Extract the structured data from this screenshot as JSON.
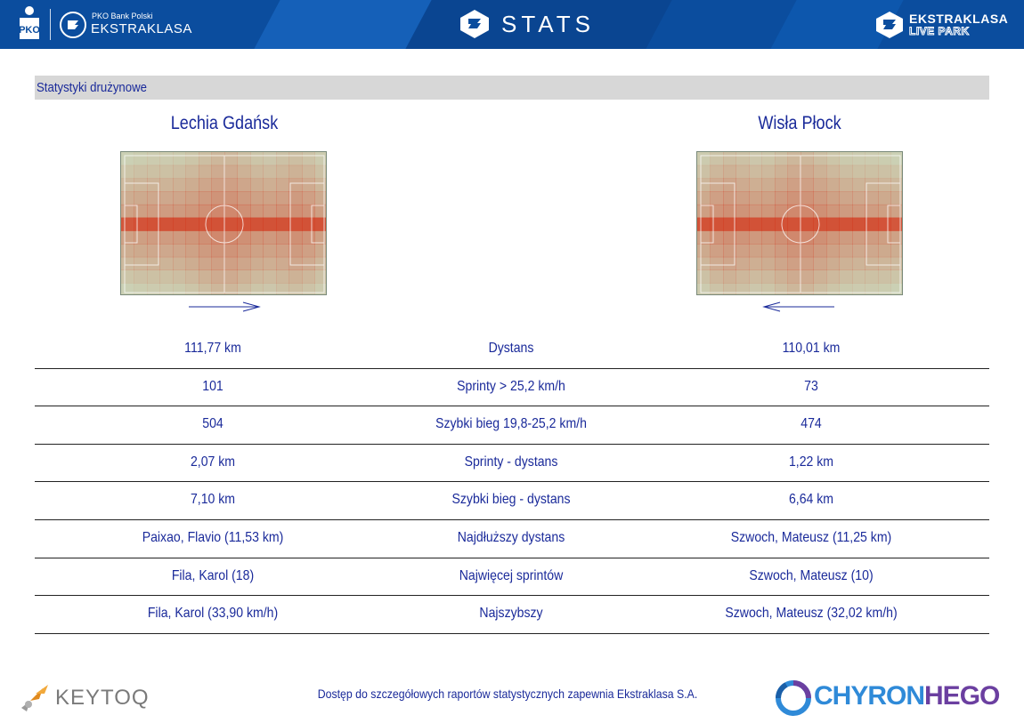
{
  "header": {
    "brand_small": "PKO Bank Polski",
    "brand_big": "EKSTRAKLASA",
    "stats_title": "STATS",
    "live_line1": "EKSTRAKLASA",
    "live_line2": "LIVE PARK",
    "pko_logo": "pko-bp-logo",
    "colors": {
      "bar": "#0b4d9e",
      "text": "#ffffff"
    }
  },
  "section": {
    "title": "Statystyki drużynowe"
  },
  "teams": {
    "home": {
      "name": "Lechia Gdańsk",
      "attack_direction": "right"
    },
    "away": {
      "name": "Wisła Płock",
      "attack_direction": "left"
    }
  },
  "stats": [
    {
      "home": "111,77 km",
      "label": "Dystans",
      "away": "110,01 km"
    },
    {
      "home": "101",
      "label": "Sprinty > 25,2 km/h",
      "away": "73"
    },
    {
      "home": "504",
      "label": "Szybki bieg 19,8-25,2 km/h",
      "away": "474"
    },
    {
      "home": "2,07 km",
      "label": "Sprinty - dystans",
      "away": "1,22 km"
    },
    {
      "home": "7,10 km",
      "label": "Szybki bieg - dystans",
      "away": "6,64 km"
    },
    {
      "home": "Paixao, Flavio (11,53 km)",
      "label": "Najdłuższy dystans",
      "away": "Szwoch, Mateusz (11,25 km)"
    },
    {
      "home": "Fila, Karol (18)",
      "label": "Najwięcej sprintów",
      "away": "Szwoch, Mateusz (10)"
    },
    {
      "home": "Fila, Karol (33,90 km/h)",
      "label": "Najszybszy",
      "away": "Szwoch, Mateusz (32,02 km/h)"
    }
  ],
  "footer": {
    "keytoq": "KEYTOQ",
    "note": "Dostęp do szczegółowych raportów statystycznych zapewnia Ekstraklasa S.A.",
    "chyron_a": "CHYRON",
    "chyron_b": "HEGO"
  },
  "colors": {
    "text_blue": "#1a2a9a",
    "section_bg": "#d7d7d7",
    "heat": "#d4381f",
    "pitch": "#cbe0c3"
  }
}
